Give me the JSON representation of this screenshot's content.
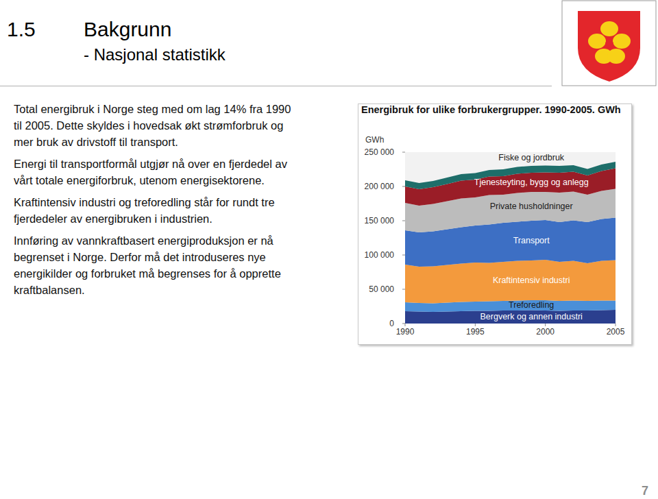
{
  "slide": {
    "number": "1.5",
    "title": "Bakgrunn",
    "subtitle": "- Nasjonal statistikk",
    "paragraphs": [
      [
        "Total energibruk i Norge steg med om lag 14% fra 1990",
        "til 2005. Dette skyldes i hovedsak økt strømforbruk og",
        "mer bruk av drivstoff til transport."
      ],
      [
        "Energi til transportformål utgjør nå over en fjerdedel av",
        "vårt totale energiforbruk, utenom energisektorene."
      ],
      [
        "Kraftintensiv industri og treforedling står for rundt tre",
        "fjerdedeler av energibruken i industrien."
      ],
      [
        "Innføring av vannkraftbasert energiproduksjon er nå",
        "begrenset i Norge. Derfor må det introduseres nye",
        "energikilder og forbruket må begrenses for å opprette",
        "kraftbalansen."
      ]
    ],
    "page_number": "7"
  },
  "chart_data": {
    "type": "area",
    "stacked": true,
    "grid": false,
    "title": "Energibruk for ulike forbrukergrupper. 1990-2005. GWh",
    "y_label": "GWh",
    "x": [
      1990,
      1991,
      1992,
      1993,
      1994,
      1995,
      1996,
      1997,
      1998,
      1999,
      2000,
      2001,
      2002,
      2003,
      2004,
      2005
    ],
    "xlim": [
      1990,
      2005
    ],
    "xticks": [
      1990,
      1995,
      2000,
      2005
    ],
    "ylim": [
      0,
      250000
    ],
    "yticks": [
      0,
      {
        "value": 50000,
        "label": "50 000"
      },
      {
        "value": 100000,
        "label": "100 000"
      },
      {
        "value": 150000,
        "label": "150 000"
      },
      {
        "value": 200000,
        "label": "200 000"
      },
      {
        "value": 250000,
        "label": "250 000"
      }
    ],
    "series": [
      {
        "name": "Bergverk og annen industri",
        "color": "#2b3f8e",
        "values": [
          18000,
          17500,
          17000,
          17500,
          18000,
          18500,
          18500,
          19000,
          19000,
          19500,
          19000,
          18500,
          19000,
          19000,
          19500,
          20000
        ]
      },
      {
        "name": "Treforedling",
        "color": "#4a8fd8",
        "values": [
          13000,
          12500,
          12500,
          13000,
          13500,
          13500,
          14000,
          14000,
          14500,
          14500,
          15000,
          14500,
          14500,
          14000,
          14000,
          13500
        ]
      },
      {
        "name": "Kraftintensiv industri",
        "color": "#f39a3d",
        "values": [
          55000,
          53000,
          54000,
          55000,
          56000,
          57000,
          56000,
          57000,
          58000,
          58000,
          59000,
          57000,
          58000,
          55000,
          58000,
          59000
        ]
      },
      {
        "name": "Transport",
        "color": "#3d6fc4",
        "values": [
          50000,
          50000,
          51000,
          52000,
          53000,
          54000,
          56000,
          57000,
          57000,
          58000,
          58000,
          58000,
          59000,
          60000,
          61000,
          62000
        ]
      },
      {
        "name": "Private husholdninger",
        "color": "#bcbcbc",
        "values": [
          40000,
          39000,
          40000,
          41000,
          42000,
          41000,
          43000,
          41000,
          42000,
          42000,
          41000,
          43000,
          42000,
          40000,
          41000,
          42000
        ]
      },
      {
        "name": "Tjenesteyting, bygg og anlegg",
        "color": "#9a1d27",
        "values": [
          24000,
          24000,
          24500,
          25000,
          26000,
          26000,
          27000,
          27000,
          28000,
          28000,
          28500,
          29000,
          29000,
          28000,
          29000,
          30000
        ]
      },
      {
        "name": "Fiske og jordbruk",
        "color": "#1e6e6a",
        "values": [
          9000,
          9000,
          9000,
          9500,
          9500,
          9500,
          9500,
          10000,
          10000,
          10000,
          10000,
          10000,
          9500,
          9500,
          9500,
          9500
        ]
      }
    ]
  }
}
